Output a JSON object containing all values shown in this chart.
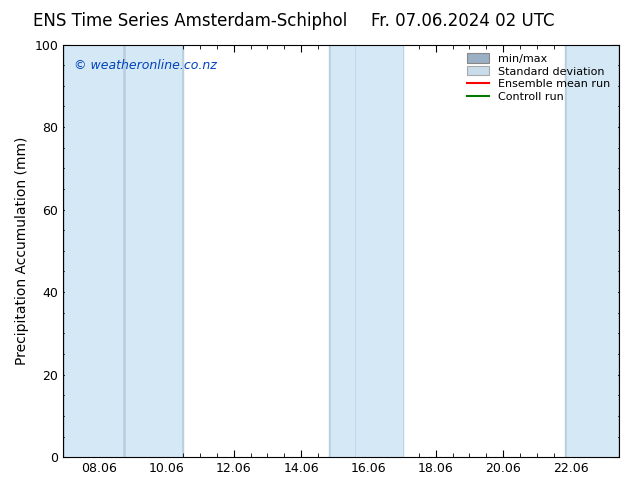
{
  "title_left": "ENS Time Series Amsterdam-Schiphol",
  "title_right": "Fr. 07.06.2024 02 UTC",
  "ylabel": "Precipitation Accumulation (mm)",
  "ylim": [
    0,
    100
  ],
  "xlim": [
    7.0,
    23.5
  ],
  "xtick_positions": [
    8.06,
    10.06,
    12.06,
    14.06,
    16.06,
    18.06,
    20.06,
    22.06
  ],
  "xtick_labels": [
    "08.06",
    "10.06",
    "12.06",
    "14.06",
    "16.06",
    "18.06",
    "20.06",
    "22.06"
  ],
  "ytick_positions": [
    0,
    20,
    40,
    60,
    80,
    100
  ],
  "watermark_text": "© weatheronline.co.nz",
  "watermark_color": "#0044bb",
  "bg_color": "#ffffff",
  "minmax_color": "#b8cfe0",
  "stddev_color": "#d5e8f5",
  "mean_color": "#ff0000",
  "control_color": "#007700",
  "legend_minmax_color": "#9ab0c4",
  "legend_stddev_color": "#c8dcea",
  "bands_minmax": [
    [
      7.0,
      8.8
    ],
    [
      8.8,
      10.55
    ],
    [
      14.9,
      15.65
    ],
    [
      15.65,
      17.1
    ],
    [
      21.9,
      23.5
    ]
  ],
  "bands_stddev": [
    [
      7.05,
      8.75
    ],
    [
      8.85,
      10.5
    ],
    [
      14.95,
      15.62
    ],
    [
      15.7,
      17.05
    ],
    [
      21.95,
      23.45
    ]
  ],
  "title_fontsize": 12,
  "axis_fontsize": 10,
  "tick_fontsize": 9,
  "legend_fontsize": 8
}
